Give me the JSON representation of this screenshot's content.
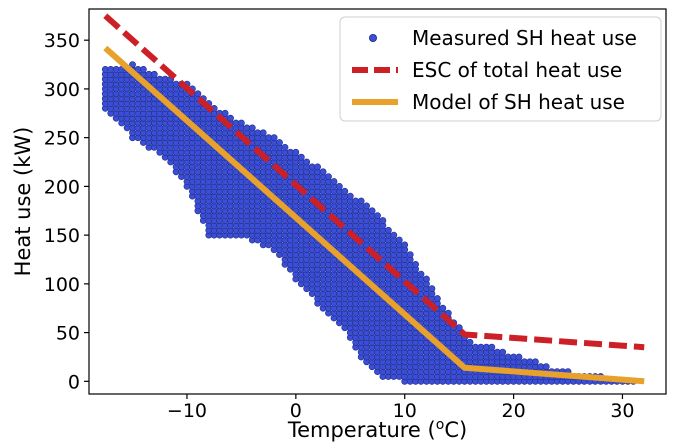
{
  "chart_data": {
    "type": "scatter",
    "title": "",
    "xlabel_main": "Temperature (",
    "xlabel_sup": "o",
    "xlabel_end": "C)",
    "ylabel": "Heat use (kW)",
    "xlim": [
      -19,
      34
    ],
    "ylim": [
      -13,
      382
    ],
    "x_ticks": [
      -10,
      0,
      10,
      20,
      30
    ],
    "x_tick_labels": [
      "−10",
      "0",
      "10",
      "20",
      "30"
    ],
    "y_ticks": [
      0,
      50,
      100,
      150,
      200,
      250,
      300,
      350
    ],
    "y_tick_labels": [
      "0",
      "50",
      "100",
      "150",
      "200",
      "250",
      "300",
      "350"
    ],
    "grid": false,
    "legend_position": "top-right",
    "legend": [
      {
        "label": "Measured SH heat use",
        "style": "marker"
      },
      {
        "label": "ESC of total heat use",
        "style": "dashed"
      },
      {
        "label": "Model of SH heat use",
        "style": "solid"
      }
    ],
    "colors": {
      "measured": "#3b4fd6",
      "measured_edge": "#1f2a8a",
      "esc": "#cc1f26",
      "model": "#e8a12a"
    },
    "series": [
      {
        "name": "Measured SH heat use",
        "kind": "scatter",
        "bands": [
          {
            "x": -17.5,
            "ymin": 280,
            "ymax": 320
          },
          {
            "x": -15,
            "ymin": 250,
            "ymax": 325
          },
          {
            "x": -12,
            "ymin": 230,
            "ymax": 312
          },
          {
            "x": -10,
            "ymin": 200,
            "ymax": 305
          },
          {
            "x": -8,
            "ymin": 150,
            "ymax": 285
          },
          {
            "x": -5,
            "ymin": 150,
            "ymax": 265
          },
          {
            "x": -2,
            "ymin": 135,
            "ymax": 250
          },
          {
            "x": 0,
            "ymin": 105,
            "ymax": 235
          },
          {
            "x": 2,
            "ymin": 80,
            "ymax": 220
          },
          {
            "x": 4,
            "ymin": 60,
            "ymax": 200
          },
          {
            "x": 6,
            "ymin": 25,
            "ymax": 185
          },
          {
            "x": 8,
            "ymin": 5,
            "ymax": 165
          },
          {
            "x": 10,
            "ymin": 0,
            "ymax": 140
          },
          {
            "x": 12,
            "ymin": 0,
            "ymax": 105
          },
          {
            "x": 14,
            "ymin": 0,
            "ymax": 70
          },
          {
            "x": 16,
            "ymin": 0,
            "ymax": 40
          },
          {
            "x": 18,
            "ymin": 0,
            "ymax": 35
          },
          {
            "x": 20,
            "ymin": 0,
            "ymax": 28
          },
          {
            "x": 22,
            "ymin": 0,
            "ymax": 20
          },
          {
            "x": 24,
            "ymin": 0,
            "ymax": 12
          },
          {
            "x": 26,
            "ymin": 0,
            "ymax": 8
          },
          {
            "x": 28,
            "ymin": 0,
            "ymax": 5
          },
          {
            "x": 31,
            "ymin": 0,
            "ymax": 3
          }
        ]
      },
      {
        "name": "ESC of total heat use",
        "kind": "line",
        "style": "dashed",
        "x": [
          -17.5,
          15.5,
          32
        ],
        "y": [
          375,
          48,
          35
        ]
      },
      {
        "name": "Model of SH heat use",
        "kind": "line",
        "style": "solid",
        "x": [
          -17.5,
          15.5,
          32
        ],
        "y": [
          342,
          14,
          0
        ]
      }
    ]
  }
}
